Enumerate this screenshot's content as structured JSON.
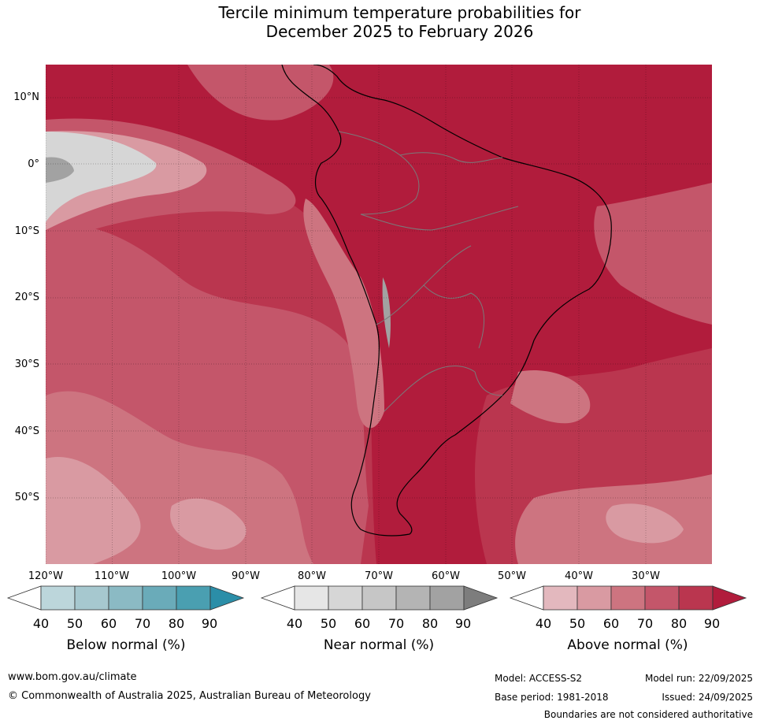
{
  "title_line1": "Tercile minimum temperature probabilities for",
  "title_line2": "December 2025 to February 2026",
  "lat_labels": [
    "10°N",
    "0°",
    "10°S",
    "20°S",
    "30°S",
    "40°S",
    "50°S"
  ],
  "lon_labels": [
    "120°W",
    "110°W",
    "100°W",
    "90°W",
    "80°W",
    "70°W",
    "60°W",
    "50°W",
    "40°W",
    "30°W"
  ],
  "colorbars": [
    {
      "label": "Below normal (%)",
      "ticks": [
        "40",
        "50",
        "60",
        "70",
        "80",
        "90"
      ],
      "colors": [
        "#ffffff",
        "#bcd6db",
        "#a6c8cf",
        "#8bbac4",
        "#6aabb9",
        "#4a9fb1",
        "#2b8ea8"
      ]
    },
    {
      "label": "Near normal (%)",
      "ticks": [
        "40",
        "50",
        "60",
        "70",
        "80",
        "90"
      ],
      "colors": [
        "#ffffff",
        "#e6e6e6",
        "#d6d6d6",
        "#c6c6c6",
        "#b4b4b4",
        "#a2a2a2",
        "#7d7d7d"
      ]
    },
    {
      "label": "Above normal (%)",
      "ticks": [
        "40",
        "50",
        "60",
        "70",
        "80",
        "90"
      ],
      "colors": [
        "#ffffff",
        "#e3b8be",
        "#d99aa2",
        "#cd7480",
        "#c4566a",
        "#ba364f",
        "#b11c3c"
      ]
    }
  ],
  "footer": {
    "website": "www.bom.gov.au/climate",
    "copyright": "© Commonwealth of Australia 2025, Australian Bureau of Meteorology",
    "model": "Model: ACCESS-S2",
    "base_period": "Base period: 1981-2018",
    "model_run": "Model run: 22/09/2025",
    "issued": "Issued: 24/09/2025",
    "disclaimer": "Boundaries are not considered authoritative"
  },
  "colors": {
    "above_strong": "#b21c3c",
    "above_mid": "#c4566a",
    "above_light": "#d99aa2",
    "near": "#c6c6c6",
    "land_outline": "#000000",
    "border": "#7a7a7a"
  }
}
